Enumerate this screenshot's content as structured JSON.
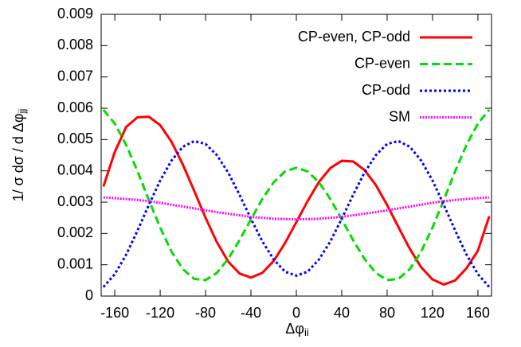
{
  "chart_data": {
    "type": "line",
    "xlabel": "Δφ",
    "xlabel_sub": "ii",
    "ylabel": "1/ σ dσ / d Δφ",
    "ylabel_sub": "jj",
    "x": [
      -170,
      -160,
      -150,
      -140,
      -130,
      -120,
      -110,
      -100,
      -90,
      -80,
      -70,
      -60,
      -50,
      -40,
      -30,
      -20,
      -10,
      0,
      10,
      20,
      30,
      40,
      50,
      60,
      70,
      80,
      90,
      100,
      110,
      120,
      130,
      140,
      150,
      160,
      170
    ],
    "series": [
      {
        "name": "CP-even, CP-odd",
        "color": "#ff0000",
        "dash": "solid",
        "values": [
          0.0035,
          0.0046,
          0.0054,
          0.00571,
          0.00573,
          0.00546,
          0.00493,
          0.0042,
          0.00336,
          0.0025,
          0.00172,
          0.0011,
          0.00072,
          0.00059,
          0.00074,
          0.00112,
          0.00169,
          0.00236,
          0.00304,
          0.00365,
          0.00409,
          0.00432,
          0.0043,
          0.00403,
          0.00355,
          0.00291,
          0.0022,
          0.00151,
          0.00092,
          0.00053,
          0.00037,
          0.0005,
          0.00089,
          0.00145,
          0.00255
        ]
      },
      {
        "name": "CP-even",
        "color": "#00dd00",
        "dash": "dashed",
        "values": [
          0.00595,
          0.00551,
          0.00483,
          0.00399,
          0.00307,
          0.00219,
          0.00142,
          0.00086,
          0.00055,
          0.00051,
          0.00074,
          0.00119,
          0.00179,
          0.00245,
          0.0031,
          0.00363,
          0.00398,
          0.0041,
          0.00398,
          0.00363,
          0.0031,
          0.00245,
          0.00179,
          0.00119,
          0.00074,
          0.00051,
          0.00055,
          0.00086,
          0.00142,
          0.00219,
          0.00307,
          0.00399,
          0.00483,
          0.00551,
          0.00595
        ]
      },
      {
        "name": "CP-odd",
        "color": "#0000ff",
        "dash": "dotted",
        "values": [
          0.00029,
          0.0007,
          0.00132,
          0.00209,
          0.00291,
          0.00369,
          0.00433,
          0.00477,
          0.00495,
          0.00486,
          0.0045,
          0.00394,
          0.00323,
          0.00247,
          0.00175,
          0.00117,
          0.00078,
          0.00065,
          0.00078,
          0.00117,
          0.00175,
          0.00247,
          0.00323,
          0.00394,
          0.0045,
          0.00486,
          0.00495,
          0.00477,
          0.00433,
          0.00369,
          0.00291,
          0.00209,
          0.00132,
          0.0007,
          0.00029
        ]
      },
      {
        "name": "SM",
        "color": "#ff00ff",
        "dash": "fine",
        "values": [
          0.00315,
          0.00313,
          0.0031,
          0.00307,
          0.00303,
          0.00298,
          0.00292,
          0.00286,
          0.0028,
          0.00274,
          0.00268,
          0.00263,
          0.00258,
          0.00253,
          0.0025,
          0.00247,
          0.00246,
          0.00245,
          0.00246,
          0.00247,
          0.0025,
          0.00253,
          0.00258,
          0.00263,
          0.00268,
          0.00274,
          0.0028,
          0.00286,
          0.00292,
          0.00298,
          0.00303,
          0.00307,
          0.0031,
          0.00313,
          0.00315
        ]
      }
    ],
    "xlim": [
      -172,
      172
    ],
    "xticks": [
      -160,
      -120,
      -80,
      -40,
      0,
      40,
      80,
      120,
      160
    ],
    "ylim": [
      0,
      0.009
    ],
    "yticks": [
      0,
      0.001,
      0.002,
      0.003,
      0.004,
      0.005,
      0.006,
      0.007,
      0.008,
      0.009
    ],
    "legend": "top-right"
  }
}
